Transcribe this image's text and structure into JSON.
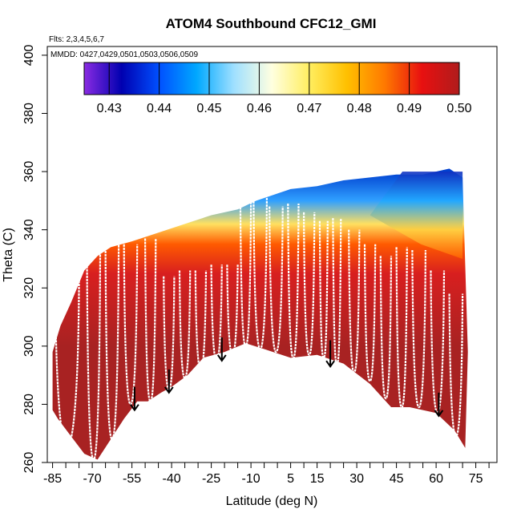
{
  "chart_data": {
    "type": "heatmap",
    "title": "ATOM4 Southbound CFC12_GMI",
    "flights_label": "Flts: 2,3,4,5,6,7",
    "mmdd_label": "MMDD: 0427,0429,0501,0503,0506,0509",
    "xlabel": "Latitude (deg N)",
    "ylabel": "Theta (C)",
    "xlim": [
      -87,
      83
    ],
    "ylim": [
      260,
      403
    ],
    "x_ticks": [
      -85,
      -70,
      -55,
      -40,
      -25,
      -10,
      5,
      15,
      30,
      45,
      60,
      75
    ],
    "x_minor_ticks": [
      -80,
      -75,
      -65,
      -60,
      -50,
      -45,
      -35,
      -30,
      -20,
      -15,
      -5,
      0,
      10,
      20,
      25,
      35,
      40,
      50,
      55,
      65,
      70,
      80
    ],
    "y_ticks": [
      260,
      280,
      300,
      320,
      340,
      360,
      380,
      400
    ],
    "colorbar": {
      "min": 0.425,
      "max": 0.5,
      "ticks": [
        0.43,
        0.44,
        0.45,
        0.46,
        0.47,
        0.48,
        0.49,
        0.5
      ],
      "tick_labels": [
        "0.43",
        "0.44",
        "0.45",
        "0.46",
        "0.47",
        "0.48",
        "0.49",
        "0.50"
      ],
      "colors": [
        "#8a2be2",
        "#0000b0",
        "#0050ff",
        "#00a8ff",
        "#a0e0ff",
        "#ffffe0",
        "#ffee60",
        "#ffc000",
        "#ff7a00",
        "#e81010",
        "#b01c1c"
      ]
    },
    "field": {
      "bottom_boundary": [
        [
          -85,
          278
        ],
        [
          -83,
          275
        ],
        [
          -78,
          269
        ],
        [
          -73,
          263
        ],
        [
          -68,
          261
        ],
        [
          -63,
          268
        ],
        [
          -58,
          275
        ],
        [
          -53,
          281
        ],
        [
          -49,
          281
        ],
        [
          -44,
          284
        ],
        [
          -40,
          286
        ],
        [
          -34,
          290
        ],
        [
          -28,
          296
        ],
        [
          -20,
          298
        ],
        [
          -12,
          301
        ],
        [
          -5,
          299
        ],
        [
          5,
          296
        ],
        [
          15,
          297
        ],
        [
          25,
          294
        ],
        [
          35,
          287
        ],
        [
          43,
          279
        ],
        [
          50,
          279
        ],
        [
          60,
          277
        ],
        [
          67,
          271
        ],
        [
          71,
          265
        ]
      ],
      "top_boundary": [
        [
          -85,
          298
        ],
        [
          -82,
          307
        ],
        [
          -78,
          315
        ],
        [
          -73,
          326
        ],
        [
          -68,
          331
        ],
        [
          -63,
          334
        ],
        [
          -55,
          336
        ],
        [
          -45,
          339
        ],
        [
          -35,
          342
        ],
        [
          -25,
          345
        ],
        [
          -15,
          347
        ],
        [
          -8,
          350
        ],
        [
          5,
          354
        ],
        [
          15,
          355
        ],
        [
          25,
          357
        ],
        [
          35,
          358
        ],
        [
          45,
          359
        ],
        [
          55,
          359
        ],
        [
          65,
          361
        ],
        [
          70,
          358
        ],
        [
          72,
          298
        ]
      ],
      "gradient_rows": [
        {
          "theta": 360,
          "color": "#0040d0"
        },
        {
          "theta": 350,
          "color": "#30a0ff"
        },
        {
          "theta": 342,
          "color": "#ffe060"
        },
        {
          "theta": 335,
          "color": "#ff5a00"
        },
        {
          "theta": 325,
          "color": "#d81f1f"
        },
        {
          "theta": 300,
          "color": "#a82222"
        }
      ],
      "high_lat_feature": {
        "lat_range": [
          35,
          70
        ],
        "theta_range": [
          330,
          360
        ],
        "colors": [
          "#1030c0",
          "#20a8ff",
          "#ffd040",
          "#ff6000"
        ]
      }
    },
    "profiles": [
      {
        "lat_start": -84,
        "lat_end": -75,
        "theta_low": 265,
        "theta_high": 323
      },
      {
        "lat_start": -72,
        "lat_end": -67,
        "theta_low": 261,
        "theta_high": 332
      },
      {
        "lat_start": -65,
        "lat_end": -60,
        "theta_low": 268,
        "theta_high": 335
      },
      {
        "lat_start": -58,
        "lat_end": -53,
        "theta_low": 280,
        "theta_high": 335
      },
      {
        "lat_start": -50,
        "lat_end": -46,
        "theta_low": 281,
        "theta_high": 337
      },
      {
        "lat_start": -43,
        "lat_end": -39,
        "theta_low": 285,
        "theta_high": 324
      },
      {
        "lat_start": -37,
        "lat_end": -33,
        "theta_low": 289,
        "theta_high": 326
      },
      {
        "lat_start": -31,
        "lat_end": -27,
        "theta_low": 292,
        "theta_high": 326
      },
      {
        "lat_start": -25,
        "lat_end": -21,
        "theta_low": 295,
        "theta_high": 328
      },
      {
        "lat_start": -19,
        "lat_end": -15,
        "theta_low": 297,
        "theta_high": 328
      },
      {
        "lat_start": -14,
        "lat_end": -10,
        "theta_low": 300,
        "theta_high": 350
      },
      {
        "lat_start": -9,
        "lat_end": -4,
        "theta_low": 299,
        "theta_high": 351
      },
      {
        "lat_start": -3,
        "lat_end": 2,
        "theta_low": 298,
        "theta_high": 348
      },
      {
        "lat_start": 4,
        "lat_end": 8,
        "theta_low": 296,
        "theta_high": 349
      },
      {
        "lat_start": 10,
        "lat_end": 14,
        "theta_low": 297,
        "theta_high": 346
      },
      {
        "lat_start": 16,
        "lat_end": 19,
        "theta_low": 296,
        "theta_high": 343
      },
      {
        "lat_start": 21,
        "lat_end": 24,
        "theta_low": 294,
        "theta_high": 344
      },
      {
        "lat_start": 27,
        "lat_end": 31,
        "theta_low": 291,
        "theta_high": 340
      },
      {
        "lat_start": 33,
        "lat_end": 37,
        "theta_low": 288,
        "theta_high": 335
      },
      {
        "lat_start": 39,
        "lat_end": 43,
        "theta_low": 282,
        "theta_high": 331
      },
      {
        "lat_start": 45,
        "lat_end": 49,
        "theta_low": 279,
        "theta_high": 334
      },
      {
        "lat_start": 51,
        "lat_end": 56,
        "theta_low": 279,
        "theta_high": 333
      },
      {
        "lat_start": 58,
        "lat_end": 63,
        "theta_low": 277,
        "theta_high": 326
      },
      {
        "lat_start": 65,
        "lat_end": 70,
        "theta_low": 269,
        "theta_high": 318
      }
    ],
    "arrows": [
      {
        "lat": -54,
        "theta_start": 286,
        "theta_end": 278
      },
      {
        "lat": -41,
        "theta_start": 292,
        "theta_end": 284
      },
      {
        "lat": -21,
        "theta_start": 303,
        "theta_end": 295
      },
      {
        "lat": 20,
        "theta_start": 302,
        "theta_end": 293
      },
      {
        "lat": 61,
        "theta_start": 284,
        "theta_end": 276
      }
    ]
  }
}
